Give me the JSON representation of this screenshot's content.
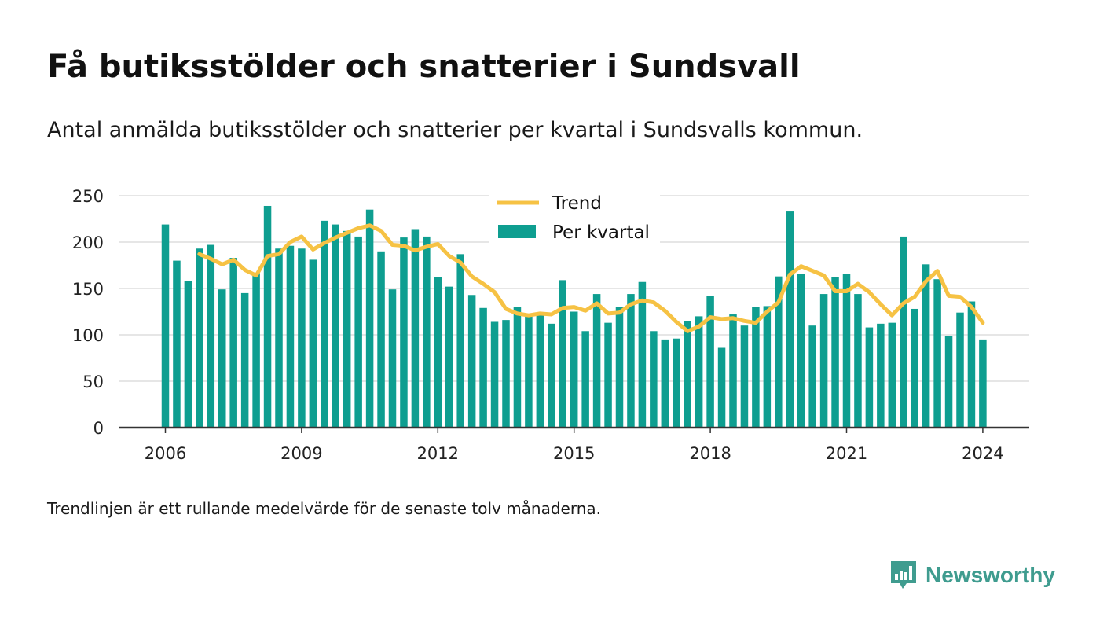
{
  "title": "Få butiksstölder och snatterier i Sundsvall",
  "subtitle": "Antal anmälda butiksstölder och snatterier per kvartal i Sundsvalls kommun.",
  "footnote": "Trendlinjen är ett rullande medelvärde för de senaste tolv månaderna.",
  "brand": {
    "name": "Newsworthy",
    "icon": "newsworthy-logo-icon",
    "color": "#3f9c8f"
  },
  "chart_data": {
    "type": "bar",
    "title": "",
    "xlabel": "",
    "ylabel": "",
    "ylim": [
      0,
      250
    ],
    "yticks": [
      0,
      50,
      100,
      150,
      200,
      250
    ],
    "xticks": [
      2006,
      2009,
      2012,
      2015,
      2018,
      2021,
      2024
    ],
    "x_start": "2006-Q1",
    "grid": true,
    "legend_position": "top-center",
    "colors": {
      "bars": "#0e9e90",
      "trend": "#f6c244",
      "grid": "#dddddd",
      "axis": "#333333"
    },
    "series": [
      {
        "name": "Per kvartal",
        "values": [
          219,
          180,
          158,
          193,
          197,
          149,
          183,
          145,
          167,
          239,
          193,
          196,
          193,
          181,
          223,
          219,
          212,
          206,
          235,
          190,
          149,
          205,
          214,
          206,
          162,
          152,
          187,
          143,
          129,
          114,
          116,
          130,
          120,
          122,
          112,
          159,
          125,
          104,
          144,
          113,
          130,
          144,
          157,
          104,
          95,
          96,
          115,
          120,
          142,
          86,
          122,
          110,
          130,
          131,
          163,
          233,
          166,
          110,
          144,
          162,
          166,
          144,
          108,
          112,
          113,
          206,
          128,
          176,
          160,
          99,
          124,
          136,
          95
        ]
      },
      {
        "name": "Trend",
        "values": [
          null,
          null,
          null,
          187,
          182,
          176,
          181,
          170,
          164,
          185,
          187,
          200,
          206,
          192,
          199,
          205,
          210,
          215,
          218,
          212,
          197,
          196,
          191,
          195,
          198,
          185,
          178,
          163,
          155,
          146,
          128,
          123,
          121,
          123,
          122,
          129,
          130,
          126,
          134,
          123,
          124,
          133,
          137,
          135,
          126,
          114,
          104,
          109,
          119,
          117,
          118,
          115,
          113,
          125,
          135,
          165,
          174,
          169,
          164,
          147,
          147,
          155,
          146,
          133,
          121,
          134,
          141,
          158,
          169,
          142,
          141,
          130,
          113
        ]
      }
    ]
  }
}
